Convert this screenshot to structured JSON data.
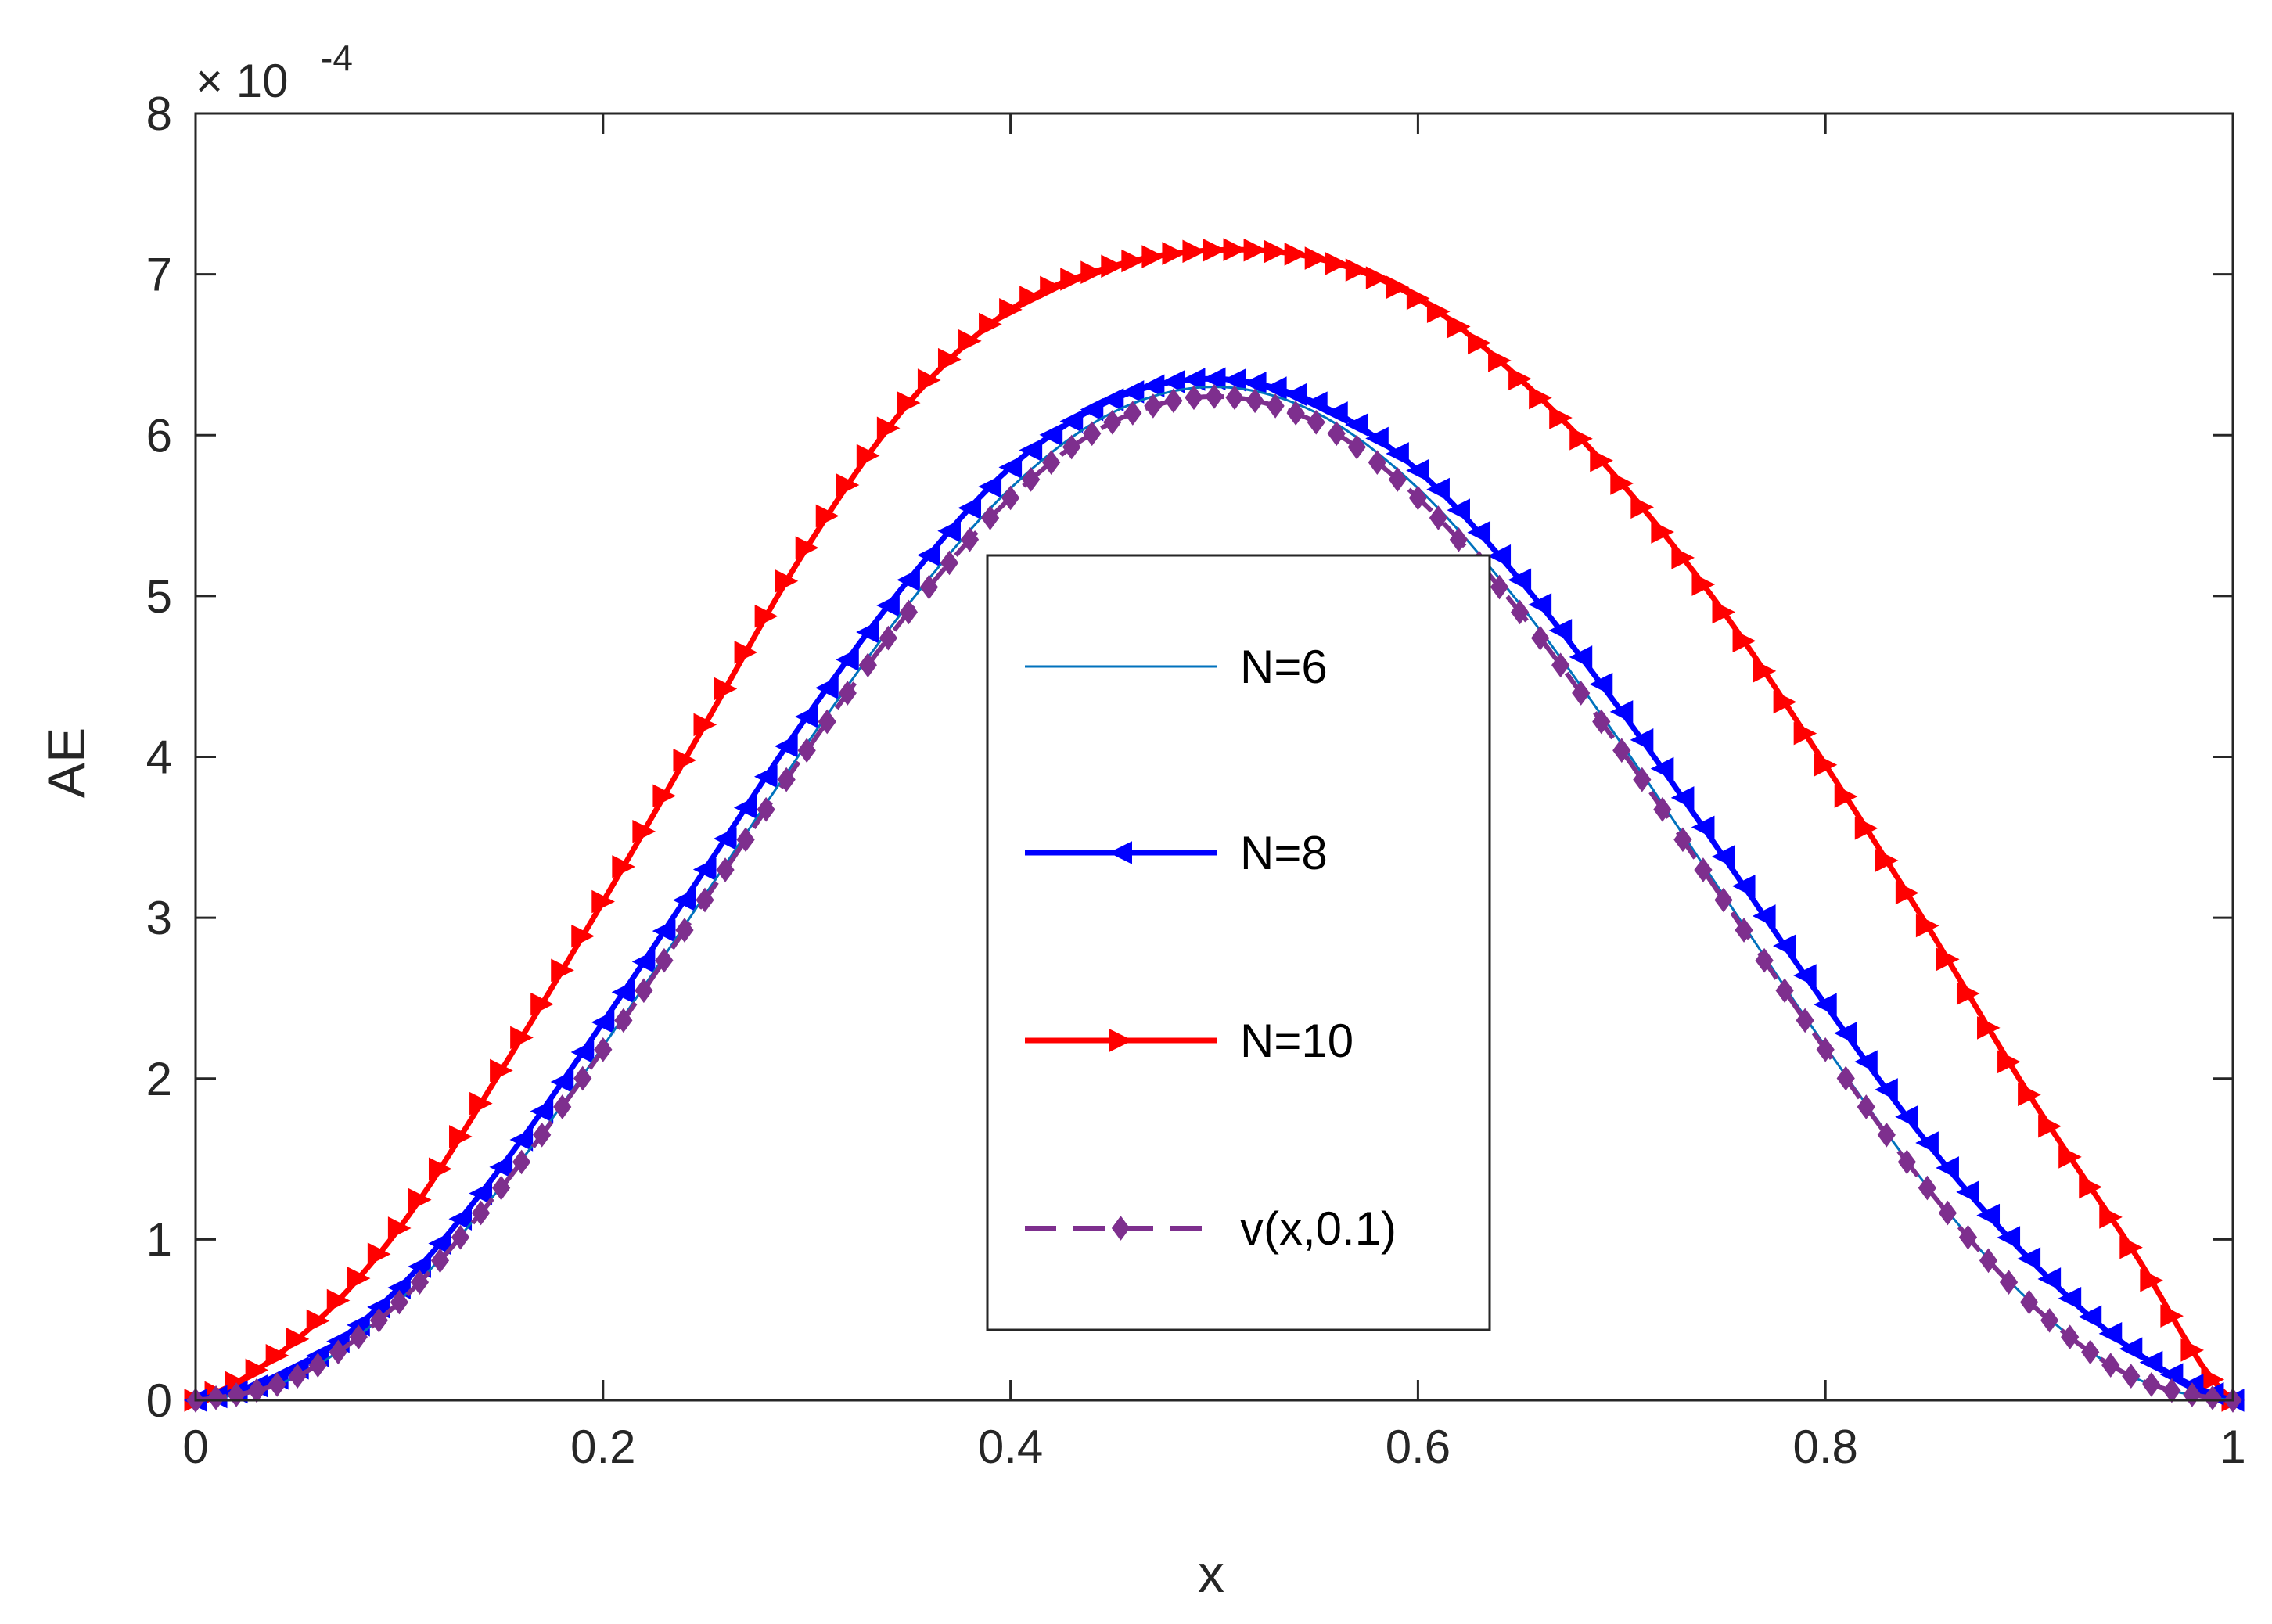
{
  "chart_data": {
    "type": "line",
    "title": "",
    "xlabel": "x",
    "ylabel": "AE",
    "xlim": [
      0,
      1
    ],
    "ylim": [
      0,
      8
    ],
    "y_scale_label_base": "× 10",
    "y_scale_label_exp": "-4",
    "y_multiplier": 0.0001,
    "xticks": [
      0,
      0.2,
      0.4,
      0.6,
      0.8,
      1
    ],
    "xtick_labels": [
      "0",
      "0.2",
      "0.4",
      "0.6",
      "0.8",
      "1"
    ],
    "yticks": [
      0,
      1,
      2,
      3,
      4,
      5,
      6,
      7,
      8
    ],
    "ytick_labels": [
      "0",
      "1",
      "2",
      "3",
      "4",
      "5",
      "6",
      "7",
      "8"
    ],
    "grid": false,
    "legend_position": "center",
    "series": [
      {
        "name": "N=6",
        "color": "#0072BD",
        "line_style": "solid",
        "marker": "none",
        "x": [
          0,
          0.05,
          0.1,
          0.15,
          0.2,
          0.25,
          0.3,
          0.35,
          0.4,
          0.45,
          0.5,
          0.55,
          0.6,
          0.65,
          0.7,
          0.75,
          0.8,
          0.85,
          0.9,
          0.95,
          1
        ],
        "values": [
          0,
          0.15,
          0.62,
          1.33,
          2.2,
          3.14,
          4.08,
          4.95,
          5.67,
          6.14,
          6.3,
          6.14,
          5.67,
          4.95,
          4.08,
          3.14,
          2.2,
          1.33,
          0.62,
          0.15,
          0
        ]
      },
      {
        "name": "N=8",
        "color": "#0000FF",
        "line_style": "solid",
        "marker": "triangle-left",
        "x": [
          0,
          0.05,
          0.1,
          0.15,
          0.2,
          0.25,
          0.3,
          0.35,
          0.4,
          0.45,
          0.5,
          0.55,
          0.6,
          0.65,
          0.7,
          0.75,
          0.8,
          0.85,
          0.9,
          0.95,
          1
        ],
        "values": [
          0,
          0.2,
          0.7,
          1.45,
          2.35,
          3.3,
          4.25,
          5.1,
          5.8,
          6.22,
          6.35,
          6.2,
          5.78,
          5.1,
          4.28,
          3.38,
          2.46,
          1.6,
          0.88,
          0.32,
          0
        ]
      },
      {
        "name": "N=10",
        "color": "#FF0000",
        "line_style": "solid",
        "marker": "triangle-right",
        "x": [
          0,
          0.05,
          0.1,
          0.15,
          0.2,
          0.25,
          0.3,
          0.35,
          0.4,
          0.45,
          0.5,
          0.55,
          0.6,
          0.65,
          0.7,
          0.75,
          0.8,
          0.85,
          0.9,
          0.95,
          1
        ],
        "values": [
          0,
          0.38,
          1.07,
          2.05,
          3.1,
          4.2,
          5.3,
          6.2,
          6.78,
          7.05,
          7.15,
          7.1,
          6.85,
          6.35,
          5.7,
          4.9,
          3.95,
          2.95,
          1.9,
          0.95,
          0
        ]
      },
      {
        "name": "v(x,0.1)",
        "color": "#7E2F8E",
        "line_style": "dashed",
        "marker": "diamond",
        "x": [
          0,
          0.05,
          0.1,
          0.15,
          0.2,
          0.25,
          0.3,
          0.35,
          0.4,
          0.45,
          0.5,
          0.55,
          0.6,
          0.65,
          0.7,
          0.75,
          0.8,
          0.85,
          0.9,
          0.95,
          1
        ],
        "values": [
          0,
          0.15,
          0.61,
          1.32,
          2.18,
          3.11,
          4.04,
          4.9,
          5.61,
          6.08,
          6.24,
          6.08,
          5.61,
          4.9,
          4.04,
          3.11,
          2.18,
          1.32,
          0.61,
          0.15,
          0
        ]
      }
    ]
  }
}
